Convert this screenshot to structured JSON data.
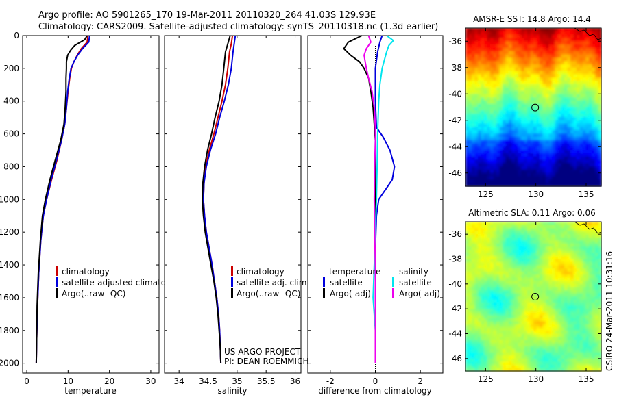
{
  "header": {
    "line1": "Argo profile: AO 5901265_170 19-Mar-2011 20110320_264 41.03S 129.93E",
    "line2": "Climatology: CARS2009. Satellite-adjusted climatology: synTS_20110318.nc (1.3d earlier)"
  },
  "credit": {
    "project": "US ARGO PROJECT",
    "pi": "PI: DEAN ROEMMICH",
    "stamp": "CSIRO 24-Mar-2011 10:31:16"
  },
  "colors": {
    "climatology": "#cc0000",
    "satellite": "#0000dd",
    "argo": "#000000",
    "salinity_sat": "#00e5ee",
    "salinity_argo": "#ee00ee"
  },
  "chart_data": [
    {
      "type": "line",
      "name": "temperature-profile",
      "xlabel": "temperature",
      "ylabel": "",
      "xlim": [
        -1,
        32
      ],
      "ylim": [
        2060,
        0
      ],
      "xticks": [
        0,
        10,
        20,
        30
      ],
      "yticks": [
        0,
        200,
        400,
        600,
        800,
        1000,
        1200,
        1400,
        1600,
        1800,
        2000
      ],
      "legend": [
        "climatology",
        "satellite-adjusted climatology",
        "Argo(..raw -QC)"
      ],
      "series": [
        {
          "name": "climatology",
          "color": "#cc0000",
          "points": [
            [
              14.8,
              0
            ],
            [
              14.6,
              40
            ],
            [
              13.2,
              80
            ],
            [
              12.2,
              120
            ],
            [
              11.4,
              160
            ],
            [
              10.8,
              200
            ],
            [
              10.4,
              260
            ],
            [
              10.0,
              340
            ],
            [
              9.6,
              440
            ],
            [
              9.2,
              540
            ],
            [
              8.4,
              640
            ],
            [
              7.3,
              760
            ],
            [
              6.0,
              880
            ],
            [
              4.8,
              1000
            ],
            [
              4.0,
              1100
            ],
            [
              3.4,
              1250
            ],
            [
              2.9,
              1450
            ],
            [
              2.6,
              1650
            ],
            [
              2.4,
              1850
            ],
            [
              2.3,
              2000
            ]
          ]
        },
        {
          "name": "satellite-adjusted climatology",
          "color": "#0000dd",
          "points": [
            [
              15.2,
              0
            ],
            [
              15.0,
              40
            ],
            [
              13.5,
              80
            ],
            [
              12.3,
              120
            ],
            [
              11.4,
              160
            ],
            [
              10.7,
              200
            ],
            [
              10.3,
              260
            ],
            [
              9.9,
              340
            ],
            [
              9.6,
              440
            ],
            [
              9.2,
              540
            ],
            [
              8.4,
              640
            ],
            [
              7.2,
              760
            ],
            [
              5.9,
              880
            ],
            [
              4.8,
              1000
            ],
            [
              4.0,
              1100
            ],
            [
              3.4,
              1250
            ],
            [
              2.9,
              1450
            ],
            [
              2.6,
              1650
            ],
            [
              2.4,
              1850
            ],
            [
              2.3,
              2000
            ]
          ]
        },
        {
          "name": "Argo(..raw -QC)",
          "color": "#000000",
          "points": [
            [
              14.6,
              0
            ],
            [
              14.0,
              25
            ],
            [
              11.6,
              60
            ],
            [
              10.6,
              90
            ],
            [
              9.9,
              120
            ],
            [
              9.6,
              160
            ],
            [
              9.6,
              200
            ],
            [
              9.5,
              260
            ],
            [
              9.5,
              340
            ],
            [
              9.3,
              440
            ],
            [
              9.0,
              540
            ],
            [
              8.2,
              640
            ],
            [
              6.9,
              760
            ],
            [
              5.6,
              880
            ],
            [
              4.5,
              1000
            ],
            [
              3.8,
              1100
            ],
            [
              3.3,
              1250
            ],
            [
              2.8,
              1450
            ],
            [
              2.5,
              1650
            ],
            [
              2.4,
              1850
            ],
            [
              2.3,
              2000
            ]
          ]
        }
      ]
    },
    {
      "type": "line",
      "name": "salinity-profile",
      "xlabel": "salinity",
      "ylabel": "",
      "xlim": [
        33.75,
        36.1
      ],
      "ylim": [
        2060,
        0
      ],
      "xticks": [
        34,
        34.5,
        35,
        35.5,
        36
      ],
      "legend": [
        "climatology",
        "satellite adj. clim.",
        "Argo(..raw -QC)"
      ],
      "series": [
        {
          "name": "climatology",
          "color": "#cc0000",
          "points": [
            [
              34.92,
              0
            ],
            [
              34.9,
              50
            ],
            [
              34.87,
              100
            ],
            [
              34.84,
              200
            ],
            [
              34.8,
              300
            ],
            [
              34.74,
              400
            ],
            [
              34.67,
              500
            ],
            [
              34.6,
              600
            ],
            [
              34.52,
              700
            ],
            [
              34.46,
              800
            ],
            [
              34.43,
              900
            ],
            [
              34.42,
              1000
            ],
            [
              34.44,
              1100
            ],
            [
              34.47,
              1200
            ],
            [
              34.52,
              1300
            ],
            [
              34.57,
              1400
            ],
            [
              34.61,
              1500
            ],
            [
              34.65,
              1600
            ],
            [
              34.68,
              1700
            ],
            [
              34.7,
              1800
            ],
            [
              34.71,
              1900
            ],
            [
              34.72,
              2000
            ]
          ]
        },
        {
          "name": "satellite adj. clim.",
          "color": "#0000dd",
          "points": [
            [
              34.97,
              0
            ],
            [
              34.95,
              50
            ],
            [
              34.93,
              100
            ],
            [
              34.9,
              200
            ],
            [
              34.85,
              300
            ],
            [
              34.78,
              400
            ],
            [
              34.7,
              500
            ],
            [
              34.63,
              600
            ],
            [
              34.54,
              700
            ],
            [
              34.47,
              800
            ],
            [
              34.43,
              900
            ],
            [
              34.42,
              1000
            ],
            [
              34.44,
              1100
            ],
            [
              34.47,
              1200
            ],
            [
              34.52,
              1300
            ],
            [
              34.57,
              1400
            ],
            [
              34.61,
              1500
            ],
            [
              34.65,
              1600
            ],
            [
              34.68,
              1700
            ],
            [
              34.7,
              1800
            ],
            [
              34.71,
              1900
            ],
            [
              34.72,
              2000
            ]
          ]
        },
        {
          "name": "Argo(..raw -QC)",
          "color": "#000000",
          "points": [
            [
              34.88,
              0
            ],
            [
              34.84,
              50
            ],
            [
              34.8,
              100
            ],
            [
              34.77,
              200
            ],
            [
              34.74,
              300
            ],
            [
              34.69,
              400
            ],
            [
              34.62,
              500
            ],
            [
              34.56,
              600
            ],
            [
              34.49,
              700
            ],
            [
              34.44,
              800
            ],
            [
              34.41,
              900
            ],
            [
              34.4,
              1000
            ],
            [
              34.42,
              1100
            ],
            [
              34.45,
              1200
            ],
            [
              34.5,
              1300
            ],
            [
              34.55,
              1400
            ],
            [
              34.6,
              1500
            ],
            [
              34.64,
              1600
            ],
            [
              34.67,
              1700
            ],
            [
              34.69,
              1800
            ],
            [
              34.71,
              1900
            ],
            [
              34.72,
              2000
            ]
          ]
        }
      ]
    },
    {
      "type": "line",
      "name": "difference-profile",
      "xlabel": "difference from climatology",
      "ylabel": "",
      "xlim": [
        -3,
        3
      ],
      "ylim": [
        2060,
        0
      ],
      "xticks": [
        -2,
        0,
        2
      ],
      "legend_temperature_title": "temperature",
      "legend_salinity_title": "salinity",
      "legend": [
        "satellite",
        "Argo(-adj)",
        "satellite",
        "Argo(-adj)"
      ],
      "series": [
        {
          "name": "temperature satellite",
          "color": "#0000dd",
          "points": [
            [
              0.3,
              0
            ],
            [
              0.2,
              40
            ],
            [
              0.1,
              100
            ],
            [
              0.0,
              200
            ],
            [
              0.0,
              400
            ],
            [
              0.05,
              560
            ],
            [
              0.35,
              620
            ],
            [
              0.65,
              700
            ],
            [
              0.85,
              800
            ],
            [
              0.75,
              880
            ],
            [
              0.45,
              940
            ],
            [
              0.15,
              1000
            ],
            [
              0.05,
              1100
            ],
            [
              0.0,
              1300
            ],
            [
              0.0,
              2000
            ]
          ]
        },
        {
          "name": "temperature Argo(-adj)",
          "color": "#000000",
          "points": [
            [
              -0.6,
              0
            ],
            [
              -1.2,
              40
            ],
            [
              -1.4,
              80
            ],
            [
              -1.1,
              120
            ],
            [
              -0.7,
              160
            ],
            [
              -0.5,
              200
            ],
            [
              -0.3,
              260
            ],
            [
              -0.2,
              340
            ],
            [
              -0.1,
              440
            ],
            [
              -0.05,
              540
            ],
            [
              0.0,
              640
            ],
            [
              0.0,
              2000
            ]
          ]
        },
        {
          "name": "salinity satellite",
          "color": "#00e5ee",
          "points": [
            [
              0.5,
              0
            ],
            [
              0.8,
              30
            ],
            [
              0.6,
              60
            ],
            [
              0.5,
              100
            ],
            [
              0.4,
              150
            ],
            [
              0.3,
              200
            ],
            [
              0.2,
              300
            ],
            [
              0.15,
              400
            ],
            [
              0.1,
              600
            ],
            [
              0.08,
              800
            ],
            [
              0.05,
              1000
            ],
            [
              0.0,
              1200
            ],
            [
              -0.05,
              1400
            ],
            [
              -0.1,
              1600
            ],
            [
              0.0,
              1800
            ],
            [
              0.0,
              2000
            ]
          ]
        },
        {
          "name": "salinity Argo(-adj)",
          "color": "#ee00ee",
          "points": [
            [
              -0.3,
              0
            ],
            [
              -0.2,
              40
            ],
            [
              -0.4,
              80
            ],
            [
              -0.5,
              120
            ],
            [
              -0.45,
              160
            ],
            [
              -0.4,
              200
            ],
            [
              -0.3,
              260
            ],
            [
              -0.15,
              340
            ],
            [
              -0.05,
              440
            ],
            [
              0.0,
              560
            ],
            [
              0.0,
              640
            ],
            [
              -0.03,
              800
            ],
            [
              -0.05,
              1000
            ],
            [
              -0.03,
              1200
            ],
            [
              0.0,
              1400
            ],
            [
              0.0,
              2000
            ]
          ]
        }
      ]
    },
    {
      "type": "heatmap",
      "name": "amsr-e-sst-map",
      "title": "AMSR-E SST: 14.8 Argo: 14.4",
      "xlim": [
        123,
        136.5
      ],
      "ylim": [
        -47,
        -35
      ],
      "xticks": [
        125,
        130,
        135
      ],
      "yticks": [
        -36,
        -38,
        -40,
        -42,
        -44,
        -46
      ],
      "argo_position": [
        129.93,
        -41.03
      ]
    },
    {
      "type": "heatmap",
      "name": "altimetric-sla-map",
      "title": "Altimetric SLA: 0.11 Argo: 0.06",
      "xlim": [
        123,
        136.5
      ],
      "ylim": [
        -47,
        -35
      ],
      "xticks": [
        125,
        130,
        135
      ],
      "yticks": [
        -36,
        -38,
        -40,
        -42,
        -44,
        -46
      ],
      "argo_position": [
        129.93,
        -41.03
      ]
    }
  ]
}
